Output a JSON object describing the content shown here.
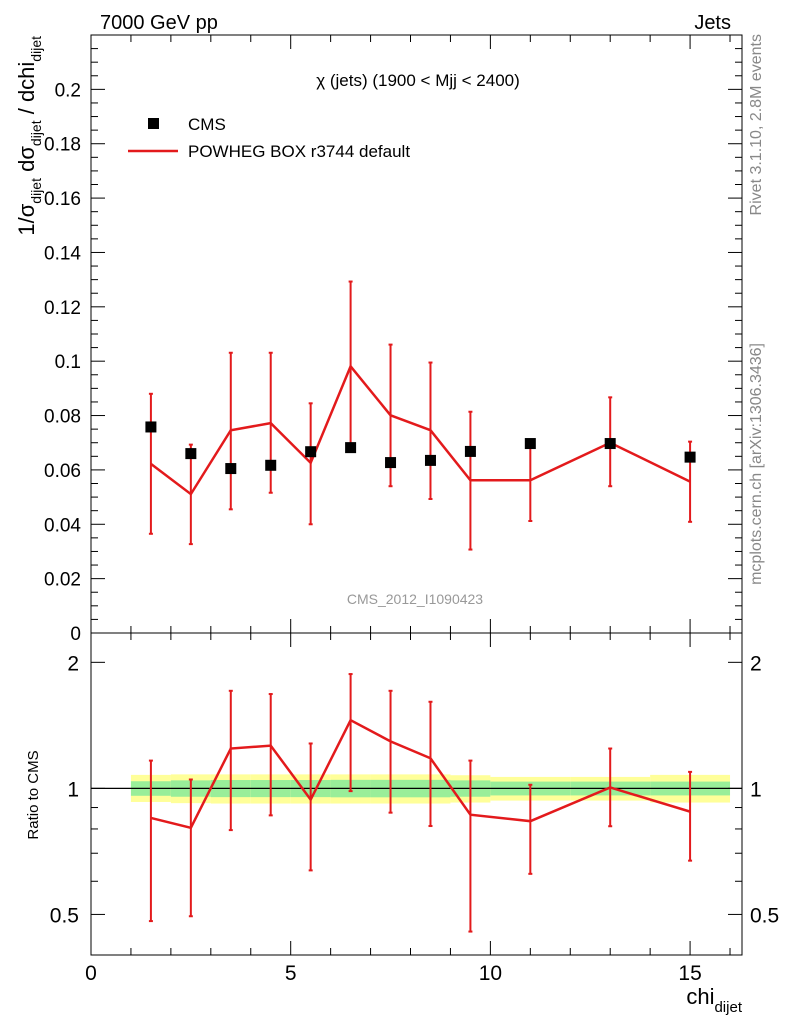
{
  "header": {
    "left": "7000 GeV pp",
    "right": "Jets"
  },
  "side_labels": {
    "top": "Rivet 3.1.10,  2.8M events",
    "bottom": "mcplots.cern.ch [arXiv:1306.3436]"
  },
  "colors": {
    "data": "#000000",
    "mc": "#e31a1c",
    "band_inner": "#99ee99",
    "band_outer": "#ffff99",
    "watermark": "#999999"
  },
  "chart_data": [
    {
      "type": "scatter",
      "panel": "main",
      "title": "χ (jets) (1900 < Mjj < 2400)",
      "watermark": "CMS_2012_I1090423",
      "ylabel": {
        "base": "1/σ",
        "sub1": "dijet",
        "mid": " dσ",
        "sub2": "dijet",
        "end": " / dchi",
        "sub3": "dijet"
      },
      "xlim": [
        0,
        16.3
      ],
      "ylim": [
        0,
        0.22
      ],
      "yticks": [
        0,
        0.02,
        0.04,
        0.06,
        0.08,
        0.1,
        0.12,
        0.14,
        0.16,
        0.18,
        0.2
      ],
      "ytick_labels": [
        "0",
        "0.02",
        "0.04",
        "0.06",
        "0.08",
        "0.1",
        "0.12",
        "0.14",
        "0.16",
        "0.18",
        "0.2"
      ],
      "legend": {
        "position": "top-left",
        "entries": [
          "CMS",
          "POWHEG BOX r3744 default"
        ]
      },
      "series": [
        {
          "name": "CMS",
          "style": "markers",
          "x": [
            1.5,
            2.5,
            3.5,
            4.5,
            5.5,
            6.5,
            7.5,
            8.5,
            9.5,
            11,
            13,
            15
          ],
          "y": [
            0.0758,
            0.066,
            0.0605,
            0.0617,
            0.0667,
            0.0682,
            0.0627,
            0.0635,
            0.0668,
            0.0697,
            0.0697,
            0.0647
          ]
        },
        {
          "name": "POWHEG BOX r3744 default",
          "style": "line",
          "x": [
            1.5,
            2.5,
            3.5,
            4.5,
            5.5,
            6.5,
            7.5,
            8.5,
            9.5,
            11,
            13,
            15
          ],
          "y": [
            0.0622,
            0.0511,
            0.0746,
            0.0772,
            0.0626,
            0.0981,
            0.0801,
            0.0746,
            0.0562,
            0.0562,
            0.07,
            0.0557
          ],
          "yerr_low": [
            0.0365,
            0.0327,
            0.0455,
            0.0516,
            0.04,
            0.0671,
            0.054,
            0.0493,
            0.0307,
            0.0412,
            0.054,
            0.0409
          ],
          "yerr_high": [
            0.088,
            0.0693,
            0.1031,
            0.1031,
            0.0845,
            0.1293,
            0.1061,
            0.0995,
            0.0814,
            0.0712,
            0.0867,
            0.0704
          ]
        }
      ]
    },
    {
      "type": "line",
      "panel": "ratio",
      "ylabel": "Ratio to CMS",
      "xlabel": {
        "base": "chi",
        "sub": "dijet"
      },
      "xlim": [
        0,
        16.3
      ],
      "xticks": [
        0,
        5,
        10,
        15
      ],
      "xtick_labels": [
        "0",
        "5",
        "10",
        "15"
      ],
      "scale_y": "log",
      "ylim": [
        0.4,
        2.35
      ],
      "yticks": [
        0.5,
        1,
        2
      ],
      "ytick_labels": [
        "0.5",
        "1",
        "2"
      ],
      "bands": {
        "edges": [
          1,
          2,
          3,
          4,
          5,
          6,
          7,
          8,
          9,
          10,
          12,
          14,
          16
        ],
        "inner_low": [
          0.96,
          0.955,
          0.953,
          0.953,
          0.953,
          0.952,
          0.952,
          0.952,
          0.955,
          0.962,
          0.962,
          0.962
        ],
        "inner_high": [
          1.04,
          1.045,
          1.047,
          1.047,
          1.047,
          1.048,
          1.048,
          1.048,
          1.045,
          1.038,
          1.038,
          1.038
        ],
        "outer_low": [
          0.928,
          0.922,
          0.92,
          0.92,
          0.92,
          0.92,
          0.92,
          0.92,
          0.925,
          0.935,
          0.935,
          0.925
        ],
        "outer_high": [
          1.077,
          1.08,
          1.08,
          1.08,
          1.08,
          1.08,
          1.08,
          1.08,
          1.075,
          1.065,
          1.065,
          1.077
        ]
      },
      "series": [
        {
          "name": "POWHEG BOX r3744 default",
          "x": [
            1.5,
            2.5,
            3.5,
            4.5,
            5.5,
            6.5,
            7.5,
            8.5,
            9.5,
            11,
            13,
            15
          ],
          "y": [
            0.85,
            0.805,
            1.245,
            1.265,
            0.94,
            1.455,
            1.295,
            1.18,
            0.865,
            0.835,
            1.005,
            0.88
          ],
          "yerr_low": [
            0.482,
            0.495,
            0.795,
            0.862,
            0.637,
            0.985,
            0.875,
            0.813,
            0.455,
            0.625,
            0.812,
            0.672
          ],
          "yerr_high": [
            1.165,
            1.05,
            1.71,
            1.68,
            1.28,
            1.875,
            1.71,
            1.61,
            1.165,
            1.02,
            1.245,
            1.095
          ]
        }
      ]
    }
  ]
}
